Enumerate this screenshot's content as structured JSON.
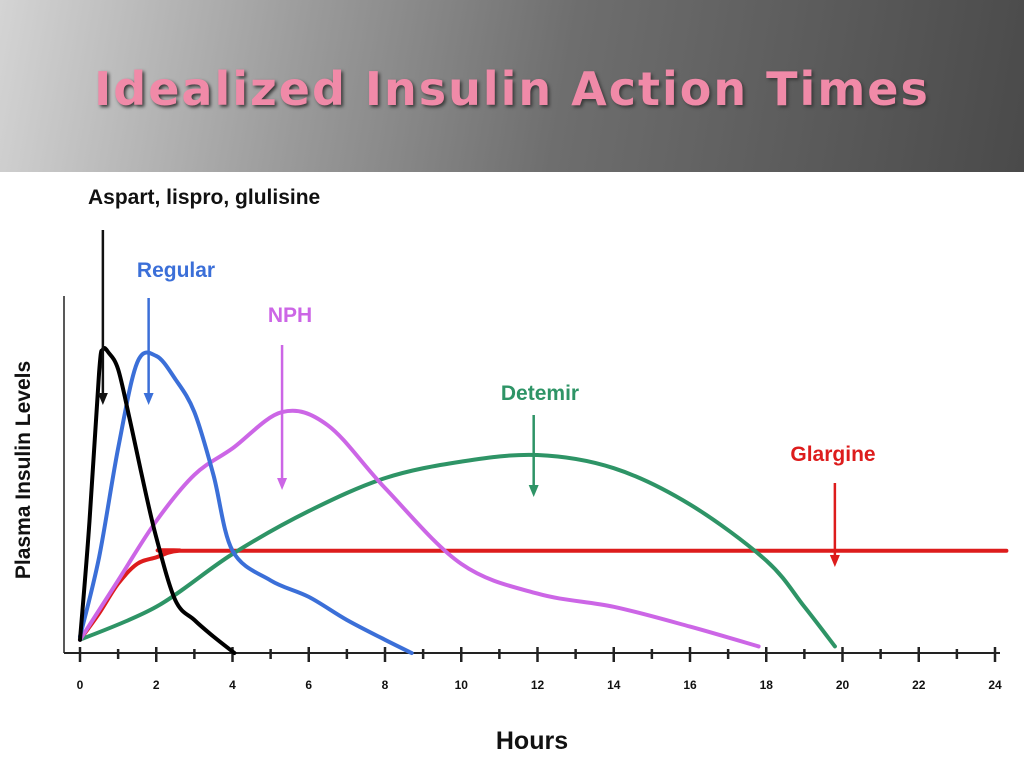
{
  "slide": {
    "title": "Idealized Insulin Action Times"
  },
  "chart_data": {
    "type": "line",
    "title": "",
    "xlabel": "Hours",
    "ylabel": "Plasma Insulin Levels",
    "xlim": [
      0,
      24
    ],
    "x_ticks": [
      0,
      2,
      4,
      6,
      8,
      10,
      12,
      14,
      16,
      18,
      20,
      22,
      24
    ],
    "grid": false,
    "series": [
      {
        "name": "Aspart, lispro, glulisine",
        "color": "#000000",
        "peak_x": 0.6,
        "points": [
          [
            0,
            0.04
          ],
          [
            0.25,
            0.4
          ],
          [
            0.5,
            0.85
          ],
          [
            0.6,
            0.92
          ],
          [
            0.75,
            0.91
          ],
          [
            1.0,
            0.86
          ],
          [
            1.3,
            0.71
          ],
          [
            1.6,
            0.55
          ],
          [
            2.0,
            0.35
          ],
          [
            2.5,
            0.16
          ],
          [
            3.0,
            0.1
          ],
          [
            3.5,
            0.05
          ],
          [
            4.05,
            0.0
          ]
        ]
      },
      {
        "name": "Regular",
        "color": "#3b6fd8",
        "peak_x": 1.8,
        "points": [
          [
            0,
            0.05
          ],
          [
            0.5,
            0.29
          ],
          [
            1.0,
            0.62
          ],
          [
            1.5,
            0.88
          ],
          [
            2.0,
            0.9
          ],
          [
            2.5,
            0.83
          ],
          [
            3.0,
            0.73
          ],
          [
            3.5,
            0.54
          ],
          [
            4.0,
            0.31
          ],
          [
            5.0,
            0.22
          ],
          [
            6.0,
            0.17
          ],
          [
            7.0,
            0.1
          ],
          [
            8.0,
            0.04
          ],
          [
            8.7,
            0.0
          ]
        ]
      },
      {
        "name": "NPH",
        "color": "#cc66e6",
        "peak_x": 5.3,
        "points": [
          [
            0,
            0.04
          ],
          [
            1.0,
            0.22
          ],
          [
            2.0,
            0.4
          ],
          [
            3.0,
            0.54
          ],
          [
            4.0,
            0.62
          ],
          [
            5.3,
            0.73
          ],
          [
            6.5,
            0.69
          ],
          [
            8.0,
            0.5
          ],
          [
            10.0,
            0.27
          ],
          [
            12.0,
            0.18
          ],
          [
            14.0,
            0.14
          ],
          [
            16.0,
            0.08
          ],
          [
            17.8,
            0.02
          ]
        ]
      },
      {
        "name": "Detemir",
        "color": "#2e9466",
        "peak_x": 11.9,
        "points": [
          [
            0,
            0.04
          ],
          [
            2.0,
            0.14
          ],
          [
            4.0,
            0.3
          ],
          [
            6.0,
            0.43
          ],
          [
            8.0,
            0.53
          ],
          [
            10.0,
            0.58
          ],
          [
            12.0,
            0.6
          ],
          [
            14.0,
            0.56
          ],
          [
            16.0,
            0.45
          ],
          [
            18.0,
            0.28
          ],
          [
            19.0,
            0.14
          ],
          [
            19.8,
            0.02
          ]
        ]
      },
      {
        "name": "Glargine",
        "color": "#dd1c1c",
        "peak_x": 19.8,
        "points": [
          [
            0,
            0.04
          ],
          [
            0.5,
            0.12
          ],
          [
            1.0,
            0.21
          ],
          [
            1.5,
            0.27
          ],
          [
            2.0,
            0.29
          ],
          [
            2.6,
            0.31
          ],
          [
            4.0,
            0.31
          ],
          [
            24.3,
            0.31
          ]
        ]
      }
    ]
  }
}
